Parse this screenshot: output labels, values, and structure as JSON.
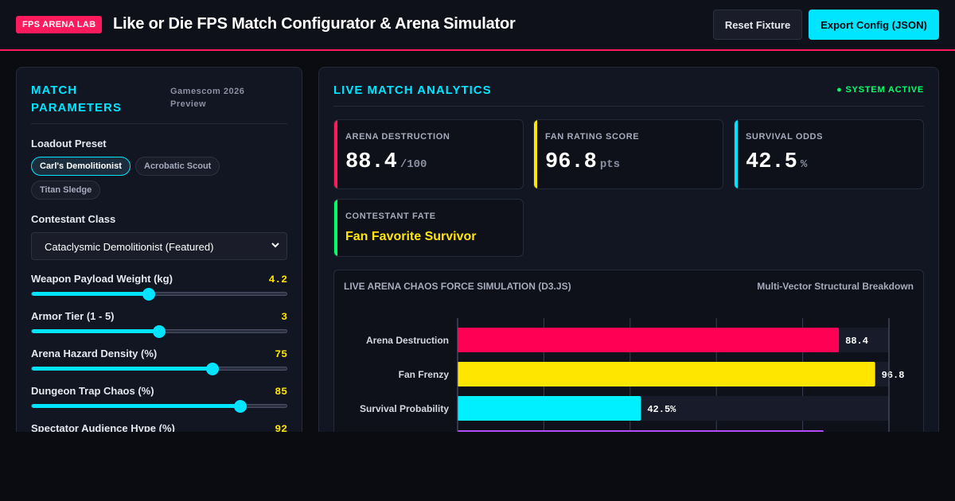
{
  "header": {
    "badge": "FPS ARENA LAB",
    "title": "Like or Die FPS Match Configurator & Arena Simulator",
    "reset_label": "Reset Fixture",
    "export_label": "Export Config (JSON)"
  },
  "left_panel": {
    "title": "MATCH PARAMETERS",
    "subtitle": "Gamescom 2026 Preview",
    "loadout_label": "Loadout Preset",
    "presets": [
      "Carl's Demolitionist",
      "Acrobatic Scout",
      "Titan Sledge"
    ],
    "active_preset": "Carl's Demolitionist",
    "class_label": "Contestant Class",
    "class_selected": "Cataclysmic Demolitionist (Featured)",
    "sliders": [
      {
        "label": "Weapon Payload Weight (kg)",
        "value": "4.2",
        "fraction": 0.46
      },
      {
        "label": "Armor Tier (1 - 5)",
        "value": "3",
        "fraction": 0.5
      },
      {
        "label": "Arena Hazard Density (%)",
        "value": "75",
        "fraction": 0.71
      },
      {
        "label": "Dungeon Trap Chaos (%)",
        "value": "85",
        "fraction": 0.82
      },
      {
        "label": "Spectator Audience Hype (%)",
        "value": "92",
        "fraction": 0.92
      }
    ]
  },
  "right_panel": {
    "title": "LIVE MATCH ANALYTICS",
    "status": "● SYSTEM ACTIVE",
    "stats": [
      {
        "label": "ARENA DESTRUCTION",
        "value": "88.4",
        "unit": "/100",
        "accent": "#ff1a5e"
      },
      {
        "label": "FAN RATING SCORE",
        "value": "96.8",
        "unit": "pts",
        "accent": "#ffe600"
      },
      {
        "label": "SURVIVAL ODDS",
        "value": "42.5",
        "unit": "%",
        "accent": "#00e5ff"
      }
    ],
    "fate": {
      "label": "CONTESTANT FATE",
      "value": "Fan Favorite Survivor",
      "accent": "#00ff6a"
    }
  },
  "chart_data": {
    "type": "bar",
    "orientation": "horizontal",
    "title": "LIVE ARENA CHAOS FORCE SIMULATION (D3.JS)",
    "subtitle": "Multi-Vector Structural Breakdown",
    "categories": [
      "Arena Destruction",
      "Fan Frenzy",
      "Survival Probability"
    ],
    "values": [
      88.4,
      96.8,
      42.5
    ],
    "value_labels": [
      "88.4",
      "96.8",
      "42.5%"
    ],
    "colors": [
      "#ff0055",
      "#ffe600",
      "#00f0ff"
    ],
    "hidden_bar_color": "#b14cff",
    "xlim": [
      0,
      100
    ],
    "grid": true
  }
}
